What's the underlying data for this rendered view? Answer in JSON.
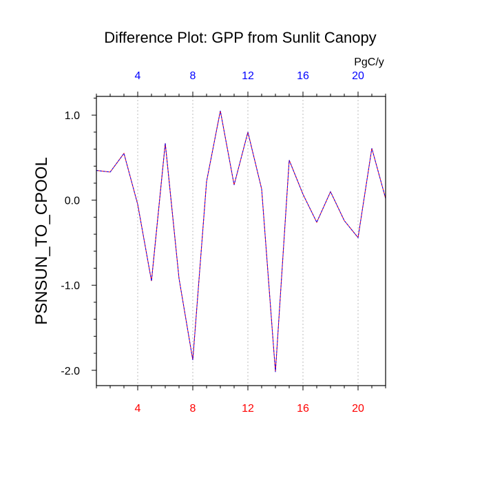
{
  "chart_data": {
    "type": "line",
    "title": "Difference Plot: GPP from Sunlit Canopy",
    "ylabel": "PSNSUN_TO_CPOOL",
    "xlabel": "",
    "top_axis_units": "PgC/y",
    "xlim": [
      1,
      22
    ],
    "ylim": [
      -2.18,
      1.22
    ],
    "x_ticks": [
      4,
      8,
      12,
      16,
      20
    ],
    "x_tick_labels": [
      "4",
      "8",
      "12",
      "16",
      "20"
    ],
    "y_ticks": [
      1.0,
      0.0,
      -1.0,
      -2.0
    ],
    "y_tick_labels": [
      "1.0",
      "0.0",
      "-1.0",
      "-2.0"
    ],
    "grid": "vertical dotted",
    "colors": {
      "line_a": "#ff0000",
      "line_b": "#0000ff",
      "bottom_tick_labels": "#ff0000",
      "top_tick_labels": "#0000ff",
      "gridline": "#bbbbbb"
    },
    "series": [
      {
        "x": [
          1,
          2,
          3,
          4,
          5,
          6,
          7,
          8,
          9,
          10,
          11,
          12,
          13,
          14,
          15,
          16,
          17,
          18,
          19,
          20,
          21,
          22
        ],
        "values": [
          0.35,
          0.33,
          0.55,
          -0.05,
          -0.95,
          0.67,
          -0.92,
          -1.88,
          0.22,
          1.05,
          0.18,
          0.8,
          0.13,
          -2.02,
          0.47,
          0.07,
          -0.26,
          0.1,
          -0.24,
          -0.44,
          0.61,
          0.02
        ]
      }
    ]
  }
}
